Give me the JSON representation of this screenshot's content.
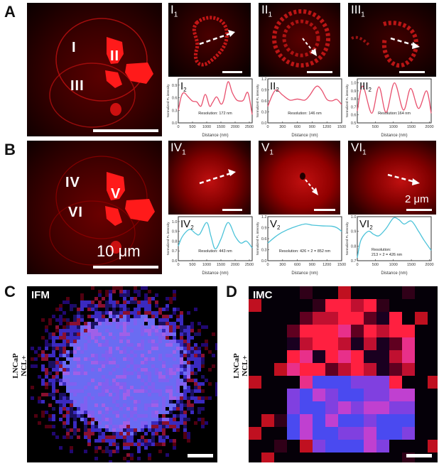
{
  "panels": {
    "A": {
      "letter": "A",
      "roi_labels": [
        "I",
        "II",
        "III"
      ]
    },
    "B": {
      "letter": "B",
      "roi_labels": [
        "IV",
        "V",
        "VI"
      ],
      "scale_text": "10 μm"
    },
    "C": {
      "letter": "C",
      "mode": "IFM",
      "side_label_line1": "LNCaP",
      "side_label_line2": "NCL+"
    },
    "D": {
      "letter": "D",
      "mode": "IMC",
      "side_label_line1": "LNCaP",
      "side_label_line2": "NCL+"
    }
  },
  "insets": {
    "I1": {
      "main": "I",
      "sub": "1"
    },
    "II1": {
      "main": "II",
      "sub": "1"
    },
    "III1": {
      "main": "III",
      "sub": "1"
    },
    "IV1": {
      "main": "IV",
      "sub": "1"
    },
    "V1": {
      "main": "V",
      "sub": "1"
    },
    "VI1": {
      "main": "VI",
      "sub": "1",
      "scale_text": "2 μm"
    }
  },
  "chart_data": [
    {
      "id": "I2",
      "type": "line",
      "panel_label": "I",
      "panel_sub": "2",
      "xlabel": "Distance (nm)",
      "ylabel": "Normalized FL intensity",
      "xlim": [
        0,
        2600
      ],
      "ylim": [
        0,
        1.05
      ],
      "xticks": [
        0,
        500,
        1000,
        1500,
        2000,
        2500
      ],
      "yticks": [
        0.0,
        0.3,
        0.6,
        0.9
      ],
      "color": "#e8506e",
      "x": [
        0,
        100,
        200,
        350,
        500,
        650,
        800,
        950,
        1100,
        1200,
        1350,
        1500,
        1600,
        1750,
        1900,
        2050,
        2200,
        2300,
        2450,
        2600
      ],
      "y": [
        0.3,
        0.62,
        0.72,
        0.62,
        0.52,
        0.5,
        0.4,
        0.68,
        0.4,
        0.48,
        0.62,
        0.45,
        0.55,
        0.98,
        0.72,
        0.55,
        0.52,
        0.55,
        0.72,
        0.2
      ],
      "annotation": "Resolution: 172 nm"
    },
    {
      "id": "II2",
      "type": "line",
      "panel_label": "II",
      "panel_sub": "2",
      "xlabel": "Distance (nm)",
      "ylabel": "Normalized FL intensity",
      "xlim": [
        0,
        1500
      ],
      "ylim": [
        0,
        1.2
      ],
      "xticks": [
        0,
        300,
        600,
        900,
        1200,
        1500
      ],
      "yticks": [
        0.0,
        0.3,
        0.6,
        0.9,
        1.2
      ],
      "color": "#e8506e",
      "x": [
        0,
        100,
        180,
        300,
        450,
        600,
        750,
        850,
        950,
        1020,
        1100,
        1200,
        1300,
        1400,
        1500
      ],
      "y": [
        0.45,
        0.78,
        0.9,
        0.76,
        0.62,
        0.65,
        0.62,
        0.75,
        0.95,
        1.0,
        0.88,
        0.64,
        0.6,
        0.64,
        0.5
      ],
      "annotation": "Resolution: 146 nm"
    },
    {
      "id": "III2",
      "type": "line",
      "panel_label": "III",
      "panel_sub": "2",
      "xlabel": "Distance (nm)",
      "ylabel": "Normalized FL intensity",
      "xlim": [
        0,
        2050
      ],
      "ylim": [
        0.5,
        1.05
      ],
      "xticks": [
        0,
        500,
        1000,
        1500,
        2000
      ],
      "yticks": [
        0.5,
        0.6,
        0.7,
        0.8,
        0.9,
        1.0
      ],
      "color": "#e8506e",
      "x": [
        0,
        150,
        400,
        600,
        800,
        1030,
        1280,
        1480,
        1700,
        1920,
        2050
      ],
      "y": [
        0.65,
        0.96,
        0.62,
        0.95,
        0.63,
        1.0,
        0.66,
        0.93,
        0.68,
        0.9,
        0.62
      ],
      "annotation": "Resolution:164 nm"
    },
    {
      "id": "IV2",
      "type": "line",
      "panel_label": "IV",
      "panel_sub": "2",
      "xlabel": "Distance (nm)",
      "ylabel": "Normalized FL intensity",
      "xlim": [
        0,
        2600
      ],
      "ylim": [
        0.6,
        1.05
      ],
      "xticks": [
        0,
        500,
        1000,
        1500,
        2000,
        2500
      ],
      "yticks": [
        0.6,
        0.7,
        0.8,
        0.9,
        1.0
      ],
      "color": "#4cc3d9",
      "x": [
        0,
        150,
        400,
        600,
        750,
        1000,
        1150,
        1300,
        1500,
        1750,
        2000,
        2200,
        2400,
        2600
      ],
      "y": [
        0.75,
        0.85,
        0.92,
        0.88,
        0.87,
        0.99,
        0.85,
        0.72,
        0.82,
        0.99,
        0.85,
        0.78,
        0.8,
        0.73
      ],
      "annotation": "Resolution: 443 nm"
    },
    {
      "id": "V2",
      "type": "line",
      "panel_label": "V",
      "panel_sub": "2",
      "xlabel": "Distance (nm)",
      "ylabel": "Normalized FL intensity",
      "xlim": [
        0,
        1500
      ],
      "ylim": [
        0,
        1.2
      ],
      "xticks": [
        0,
        300,
        600,
        900,
        1200,
        1500
      ],
      "yticks": [
        0.0,
        0.3,
        0.6,
        0.9,
        1.2
      ],
      "color": "#4cc3d9",
      "x": [
        0,
        150,
        300,
        500,
        750,
        900,
        1100,
        1300,
        1400,
        1500
      ],
      "y": [
        0.48,
        0.65,
        0.78,
        0.9,
        1.0,
        0.97,
        0.95,
        0.94,
        0.9,
        0.8
      ],
      "annotation": "Resolution: 426 × 2 = 852 nm"
    },
    {
      "id": "VI2",
      "type": "line",
      "panel_label": "VI",
      "panel_sub": "2",
      "xlabel": "Distance (nm)",
      "ylabel": "Normalized FL intensity",
      "xlim": [
        0,
        2050
      ],
      "ylim": [
        0.7,
        1.0
      ],
      "xticks": [
        0,
        500,
        1000,
        1500,
        2000
      ],
      "yticks": [
        0.7,
        0.8,
        0.9,
        1.0
      ],
      "color": "#4cc3d9",
      "x": [
        0,
        100,
        300,
        450,
        600,
        800,
        1000,
        1150,
        1300,
        1500,
        1700,
        1850,
        2050
      ],
      "y": [
        0.72,
        0.84,
        0.9,
        0.88,
        0.87,
        0.92,
        0.99,
        0.98,
        0.95,
        0.97,
        0.9,
        0.84,
        0.77
      ],
      "annotation_line1": "Resolution:",
      "annotation_line2": "213 × 2 = 426 nm"
    }
  ],
  "chart_text": {
    "I2": {
      "label": "I",
      "sub": "2",
      "ann": "Resolution: 172 nm"
    },
    "II2": {
      "label": "II",
      "sub": "2",
      "ann": "Resolution: 146 nm"
    },
    "III2": {
      "label": "III",
      "sub": "2",
      "ann": "Resolution:164 nm"
    },
    "IV2": {
      "label": "IV",
      "sub": "2",
      "ann1": "Resolution:",
      "ann2": "443 nm"
    },
    "V2": {
      "label": "V",
      "sub": "2",
      "ann1": "Resolution:",
      "ann2": "426 × 2 = 852 nm"
    },
    "VI2": {
      "label": "VI",
      "sub": "2",
      "ann1": "Resolution:",
      "ann2": "213 × 2 = 426 nm"
    },
    "xlabel": "Distance (nm)",
    "ylabel": "Normalized FL intensity"
  }
}
